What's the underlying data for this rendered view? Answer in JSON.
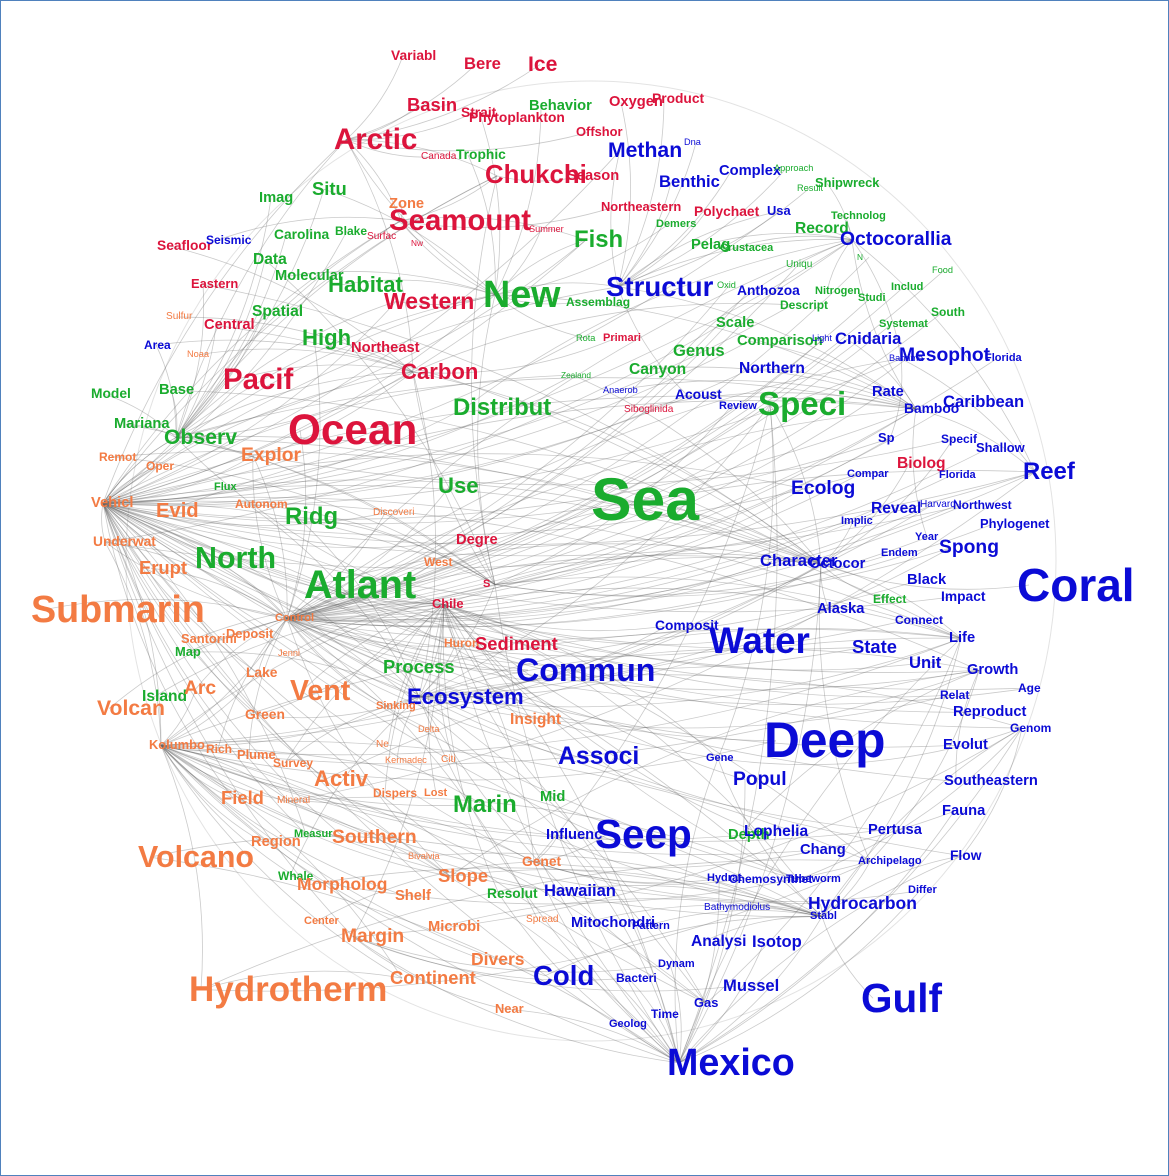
{
  "colors": {
    "red": "#dc143c",
    "green": "#1aac2e",
    "blue": "#0b0bd6",
    "orange": "#f37b43",
    "edge": "#666666"
  },
  "words": [
    {
      "text": "Variabl",
      "cluster": "red",
      "w": 1.5
    },
    {
      "text": "Bere",
      "cluster": "red",
      "w": 1.8
    },
    {
      "text": "Ice",
      "cluster": "red",
      "w": 2.3
    },
    {
      "text": "Basin",
      "cluster": "red",
      "w": 2.0
    },
    {
      "text": "Strait",
      "cluster": "red",
      "w": 1.5
    },
    {
      "text": "Phytoplankton",
      "cluster": "red",
      "w": 1.5
    },
    {
      "text": "Behavior",
      "cluster": "green",
      "w": 1.6
    },
    {
      "text": "Oxygen",
      "cluster": "red",
      "w": 1.6
    },
    {
      "text": "Product",
      "cluster": "red",
      "w": 1.5
    },
    {
      "text": "Offshor",
      "cluster": "red",
      "w": 1.4
    },
    {
      "text": "Arctic",
      "cluster": "red",
      "w": 3.2
    },
    {
      "text": "Canada",
      "cluster": "red",
      "w": 1.1
    },
    {
      "text": "Trophic",
      "cluster": "green",
      "w": 1.5
    },
    {
      "text": "Methan",
      "cluster": "blue",
      "w": 2.3
    },
    {
      "text": "Dna",
      "cluster": "blue",
      "w": 1.0
    },
    {
      "text": "Chukchi",
      "cluster": "red",
      "w": 2.8
    },
    {
      "text": "Season",
      "cluster": "red",
      "w": 1.6
    },
    {
      "text": "Benthic",
      "cluster": "blue",
      "w": 1.8
    },
    {
      "text": "Complex",
      "cluster": "blue",
      "w": 1.6
    },
    {
      "text": "Approach",
      "cluster": "green",
      "w": 1.0
    },
    {
      "text": "Result",
      "cluster": "green",
      "w": 1.0
    },
    {
      "text": "Shipwreck",
      "cluster": "green",
      "w": 1.4
    },
    {
      "text": "Situ",
      "cluster": "green",
      "w": 2.0
    },
    {
      "text": "Imag",
      "cluster": "green",
      "w": 1.6
    },
    {
      "text": "Zone",
      "cluster": "orange",
      "w": 1.6
    },
    {
      "text": "Seamount",
      "cluster": "red",
      "w": 3.2
    },
    {
      "text": "Northeastern",
      "cluster": "red",
      "w": 1.4
    },
    {
      "text": "Polychaet",
      "cluster": "red",
      "w": 1.5
    },
    {
      "text": "Usa",
      "cluster": "blue",
      "w": 1.4
    },
    {
      "text": "Technolog",
      "cluster": "green",
      "w": 1.2
    },
    {
      "text": "Seafloor",
      "cluster": "red",
      "w": 1.5
    },
    {
      "text": "Seismic",
      "cluster": "blue",
      "w": 1.3
    },
    {
      "text": "Carolina",
      "cluster": "green",
      "w": 1.5
    },
    {
      "text": "Blake",
      "cluster": "green",
      "w": 1.3
    },
    {
      "text": "Surfac",
      "cluster": "red",
      "w": 1.1
    },
    {
      "text": "Nw",
      "cluster": "red",
      "w": 0.9
    },
    {
      "text": "Summer",
      "cluster": "red",
      "w": 1.0
    },
    {
      "text": "Fish",
      "cluster": "green",
      "w": 2.6
    },
    {
      "text": "Demers",
      "cluster": "green",
      "w": 1.2
    },
    {
      "text": "Record",
      "cluster": "green",
      "w": 1.7
    },
    {
      "text": "Octocorallia",
      "cluster": "blue",
      "w": 2.1
    },
    {
      "text": "Pelag",
      "cluster": "green",
      "w": 1.6
    },
    {
      "text": "Crustacea",
      "cluster": "green",
      "w": 1.2
    },
    {
      "text": "Data",
      "cluster": "green",
      "w": 1.7
    },
    {
      "text": "Molecular",
      "cluster": "green",
      "w": 1.6
    },
    {
      "text": "Habitat",
      "cluster": "green",
      "w": 2.4
    },
    {
      "text": "New",
      "cluster": "green",
      "w": 4.1
    },
    {
      "text": "Uniqu",
      "cluster": "green",
      "w": 1.1
    },
    {
      "text": "N",
      "cluster": "green",
      "w": 0.9
    },
    {
      "text": "Food",
      "cluster": "green",
      "w": 1.0
    },
    {
      "text": "Eastern",
      "cluster": "red",
      "w": 1.4
    },
    {
      "text": "Western",
      "cluster": "red",
      "w": 2.5
    },
    {
      "text": "Assemblag",
      "cluster": "green",
      "w": 1.3
    },
    {
      "text": "Structur",
      "cluster": "blue",
      "w": 3.0
    },
    {
      "text": "Oxid",
      "cluster": "green",
      "w": 1.0
    },
    {
      "text": "Anthozoa",
      "cluster": "blue",
      "w": 1.5
    },
    {
      "text": "Nitrogen",
      "cluster": "green",
      "w": 1.2
    },
    {
      "text": "Includ",
      "cluster": "green",
      "w": 1.2
    },
    {
      "text": "Descript",
      "cluster": "green",
      "w": 1.3
    },
    {
      "text": "Studi",
      "cluster": "green",
      "w": 1.2
    },
    {
      "text": "South",
      "cluster": "green",
      "w": 1.3
    },
    {
      "text": "Sulfur",
      "cluster": "orange",
      "w": 1.1
    },
    {
      "text": "Central",
      "cluster": "red",
      "w": 1.6
    },
    {
      "text": "Spatial",
      "cluster": "green",
      "w": 1.7
    },
    {
      "text": "Scale",
      "cluster": "green",
      "w": 1.6
    },
    {
      "text": "Systemat",
      "cluster": "green",
      "w": 1.2
    },
    {
      "text": "Rota",
      "cluster": "green",
      "w": 1.0
    },
    {
      "text": "Primari",
      "cluster": "red",
      "w": 1.2
    },
    {
      "text": "Comparison",
      "cluster": "green",
      "w": 1.6
    },
    {
      "text": "Light",
      "cluster": "blue",
      "w": 1.0
    },
    {
      "text": "Cnidaria",
      "cluster": "blue",
      "w": 1.8
    },
    {
      "text": "Area",
      "cluster": "blue",
      "w": 1.3
    },
    {
      "text": "High",
      "cluster": "green",
      "w": 2.4
    },
    {
      "text": "Northeast",
      "cluster": "red",
      "w": 1.6
    },
    {
      "text": "Noaa",
      "cluster": "orange",
      "w": 1.0
    },
    {
      "text": "Genus",
      "cluster": "green",
      "w": 1.8
    },
    {
      "text": "Mesophot",
      "cluster": "blue",
      "w": 2.1
    },
    {
      "text": "Bahama",
      "cluster": "blue",
      "w": 1.0
    },
    {
      "text": "Florida",
      "cluster": "blue",
      "w": 1.2
    },
    {
      "text": "Pacif",
      "cluster": "red",
      "w": 3.2
    },
    {
      "text": "Carbon",
      "cluster": "red",
      "w": 2.4
    },
    {
      "text": "Zealand",
      "cluster": "green",
      "w": 0.9
    },
    {
      "text": "Canyon",
      "cluster": "green",
      "w": 1.7
    },
    {
      "text": "Northern",
      "cluster": "blue",
      "w": 1.7
    },
    {
      "text": "Model",
      "cluster": "green",
      "w": 1.5
    },
    {
      "text": "Base",
      "cluster": "green",
      "w": 1.6
    },
    {
      "text": "Anaerob",
      "cluster": "blue",
      "w": 1.0
    },
    {
      "text": "Acoust",
      "cluster": "blue",
      "w": 1.5
    },
    {
      "text": "Rate",
      "cluster": "blue",
      "w": 1.6
    },
    {
      "text": "Caribbean",
      "cluster": "blue",
      "w": 1.8
    },
    {
      "text": "Distribut",
      "cluster": "green",
      "w": 2.6
    },
    {
      "text": "Review",
      "cluster": "blue",
      "w": 1.2
    },
    {
      "text": "Speci",
      "cluster": "green",
      "w": 3.6
    },
    {
      "text": "Bamboo",
      "cluster": "blue",
      "w": 1.5
    },
    {
      "text": "Mariana",
      "cluster": "green",
      "w": 1.6
    },
    {
      "text": "Ocean",
      "cluster": "red",
      "w": 4.6
    },
    {
      "text": "Siboglinida",
      "cluster": "red",
      "w": 1.1
    },
    {
      "text": "Observ",
      "cluster": "green",
      "w": 2.3
    },
    {
      "text": "Sp",
      "cluster": "blue",
      "w": 1.4
    },
    {
      "text": "Specif",
      "cluster": "blue",
      "w": 1.3
    },
    {
      "text": "Shallow",
      "cluster": "blue",
      "w": 1.4
    },
    {
      "text": "Remot",
      "cluster": "orange",
      "w": 1.3
    },
    {
      "text": "Oper",
      "cluster": "orange",
      "w": 1.3
    },
    {
      "text": "Explor",
      "cluster": "orange",
      "w": 2.1
    },
    {
      "text": "Biolog",
      "cluster": "red",
      "w": 1.7
    },
    {
      "text": "Reef",
      "cluster": "blue",
      "w": 2.6
    },
    {
      "text": "Compar",
      "cluster": "blue",
      "w": 1.2
    },
    {
      "text": "Florida",
      "cluster": "blue",
      "w": 1.2
    },
    {
      "text": "Flux",
      "cluster": "green",
      "w": 1.2
    },
    {
      "text": "Use",
      "cluster": "green",
      "w": 2.4
    },
    {
      "text": "Sea",
      "cluster": "green",
      "w": 6.6
    },
    {
      "text": "Ecolog",
      "cluster": "blue",
      "w": 2.1
    },
    {
      "text": "Vehicl",
      "cluster": "orange",
      "w": 1.6
    },
    {
      "text": "Evid",
      "cluster": "orange",
      "w": 2.2
    },
    {
      "text": "Autonom",
      "cluster": "orange",
      "w": 1.3
    },
    {
      "text": "Ridg",
      "cluster": "green",
      "w": 2.6
    },
    {
      "text": "Discoveri",
      "cluster": "orange",
      "w": 1.1
    },
    {
      "text": "Reveal",
      "cluster": "blue",
      "w": 1.7
    },
    {
      "text": "Harvard",
      "cluster": "blue",
      "w": 1.1
    },
    {
      "text": "Northwest",
      "cluster": "blue",
      "w": 1.3
    },
    {
      "text": "Implic",
      "cluster": "blue",
      "w": 1.2
    },
    {
      "text": "Phylogenet",
      "cluster": "blue",
      "w": 1.4
    },
    {
      "text": "Underwat",
      "cluster": "orange",
      "w": 1.5
    },
    {
      "text": "Degre",
      "cluster": "red",
      "w": 1.6
    },
    {
      "text": "Year",
      "cluster": "blue",
      "w": 1.2
    },
    {
      "text": "Endem",
      "cluster": "blue",
      "w": 1.2
    },
    {
      "text": "Spong",
      "cluster": "blue",
      "w": 2.1
    },
    {
      "text": "Erupt",
      "cluster": "orange",
      "w": 2.0
    },
    {
      "text": "North",
      "cluster": "green",
      "w": 3.3
    },
    {
      "text": "West",
      "cluster": "orange",
      "w": 1.3
    },
    {
      "text": "Character",
      "cluster": "blue",
      "w": 1.8
    },
    {
      "text": "Octocor",
      "cluster": "blue",
      "w": 1.6
    },
    {
      "text": "Black",
      "cluster": "blue",
      "w": 1.6
    },
    {
      "text": "Coral",
      "cluster": "blue",
      "w": 5.0
    },
    {
      "text": "Atlant",
      "cluster": "green",
      "w": 4.3
    },
    {
      "text": "S",
      "cluster": "red",
      "w": 1.2
    },
    {
      "text": "Submarin",
      "cluster": "orange",
      "w": 4.1
    },
    {
      "text": "Chile",
      "cluster": "red",
      "w": 1.4
    },
    {
      "text": "Alaska",
      "cluster": "blue",
      "w": 1.6
    },
    {
      "text": "Effect",
      "cluster": "green",
      "w": 1.3
    },
    {
      "text": "Impact",
      "cluster": "blue",
      "w": 1.5
    },
    {
      "text": "Control",
      "cluster": "orange",
      "w": 1.2
    },
    {
      "text": "Connect",
      "cluster": "blue",
      "w": 1.3
    },
    {
      "text": "Deposit",
      "cluster": "orange",
      "w": 1.4
    },
    {
      "text": "Santorini",
      "cluster": "orange",
      "w": 1.4
    },
    {
      "text": "Composit",
      "cluster": "blue",
      "w": 1.5
    },
    {
      "text": "Water",
      "cluster": "blue",
      "w": 4.0
    },
    {
      "text": "Life",
      "cluster": "blue",
      "w": 1.6
    },
    {
      "text": "Map",
      "cluster": "green",
      "w": 1.4
    },
    {
      "text": "Jenni",
      "cluster": "orange",
      "w": 1.0
    },
    {
      "text": "Huron",
      "cluster": "orange",
      "w": 1.3
    },
    {
      "text": "Sediment",
      "cluster": "red",
      "w": 2.0
    },
    {
      "text": "State",
      "cluster": "blue",
      "w": 2.0
    },
    {
      "text": "Commun",
      "cluster": "blue",
      "w": 3.5
    },
    {
      "text": "Unit",
      "cluster": "blue",
      "w": 1.8
    },
    {
      "text": "Growth",
      "cluster": "blue",
      "w": 1.6
    },
    {
      "text": "Process",
      "cluster": "green",
      "w": 2.0
    },
    {
      "text": "Lake",
      "cluster": "orange",
      "w": 1.5
    },
    {
      "text": "Age",
      "cluster": "blue",
      "w": 1.3
    },
    {
      "text": "Island",
      "cluster": "green",
      "w": 1.7
    },
    {
      "text": "Arc",
      "cluster": "orange",
      "w": 2.1
    },
    {
      "text": "Vent",
      "cluster": "orange",
      "w": 3.1
    },
    {
      "text": "Relat",
      "cluster": "blue",
      "w": 1.3
    },
    {
      "text": "Ecosystem",
      "cluster": "blue",
      "w": 2.4
    },
    {
      "text": "Sinking",
      "cluster": "orange",
      "w": 1.2
    },
    {
      "text": "Reproduct",
      "cluster": "blue",
      "w": 1.6
    },
    {
      "text": "Genom",
      "cluster": "blue",
      "w": 1.3
    },
    {
      "text": "Volcan",
      "cluster": "orange",
      "w": 2.3
    },
    {
      "text": "Green",
      "cluster": "orange",
      "w": 1.5
    },
    {
      "text": "Insight",
      "cluster": "orange",
      "w": 1.7
    },
    {
      "text": "Deep",
      "cluster": "blue",
      "w": 5.4
    },
    {
      "text": "Delta",
      "cluster": "orange",
      "w": 1.0
    },
    {
      "text": "Evolut",
      "cluster": "blue",
      "w": 1.6
    },
    {
      "text": "Kolumbo",
      "cluster": "orange",
      "w": 1.4
    },
    {
      "text": "Rich",
      "cluster": "orange",
      "w": 1.3
    },
    {
      "text": "Plume",
      "cluster": "orange",
      "w": 1.4
    },
    {
      "text": "Ne",
      "cluster": "orange",
      "w": 1.1
    },
    {
      "text": "Associ",
      "cluster": "blue",
      "w": 2.7
    },
    {
      "text": "Gene",
      "cluster": "blue",
      "w": 1.2
    },
    {
      "text": "Survey",
      "cluster": "orange",
      "w": 1.3
    },
    {
      "text": "Kermadec",
      "cluster": "orange",
      "w": 1.0
    },
    {
      "text": "Citi",
      "cluster": "orange",
      "w": 1.1
    },
    {
      "text": "Popul",
      "cluster": "blue",
      "w": 2.1
    },
    {
      "text": "Southeastern",
      "cluster": "blue",
      "w": 1.6
    },
    {
      "text": "Activ",
      "cluster": "orange",
      "w": 2.4
    },
    {
      "text": "Field",
      "cluster": "orange",
      "w": 2.0
    },
    {
      "text": "Mineral",
      "cluster": "orange",
      "w": 1.1
    },
    {
      "text": "Dispers",
      "cluster": "orange",
      "w": 1.3
    },
    {
      "text": "Lost",
      "cluster": "orange",
      "w": 1.2
    },
    {
      "text": "Marin",
      "cluster": "green",
      "w": 2.6
    },
    {
      "text": "Mid",
      "cluster": "green",
      "w": 1.6
    },
    {
      "text": "Fauna",
      "cluster": "blue",
      "w": 1.6
    },
    {
      "text": "Measur",
      "cluster": "green",
      "w": 1.2
    },
    {
      "text": "Region",
      "cluster": "orange",
      "w": 1.6
    },
    {
      "text": "Southern",
      "cluster": "orange",
      "w": 2.1
    },
    {
      "text": "Influenc",
      "cluster": "blue",
      "w": 1.6
    },
    {
      "text": "Seep",
      "cluster": "blue",
      "w": 4.4
    },
    {
      "text": "Depth",
      "cluster": "green",
      "w": 1.6
    },
    {
      "text": "Lophelia",
      "cluster": "blue",
      "w": 1.7
    },
    {
      "text": "Pertusa",
      "cluster": "blue",
      "w": 1.6
    },
    {
      "text": "Volcano",
      "cluster": "orange",
      "w": 3.3
    },
    {
      "text": "Bivalvia",
      "cluster": "orange",
      "w": 1.0
    },
    {
      "text": "Chang",
      "cluster": "blue",
      "w": 1.6
    },
    {
      "text": "Archipelago",
      "cluster": "blue",
      "w": 1.2
    },
    {
      "text": "Flow",
      "cluster": "blue",
      "w": 1.5
    },
    {
      "text": "Genet",
      "cluster": "orange",
      "w": 1.5
    },
    {
      "text": "Whale",
      "cluster": "green",
      "w": 1.3
    },
    {
      "text": "Morpholog",
      "cluster": "orange",
      "w": 1.9
    },
    {
      "text": "Slope",
      "cluster": "orange",
      "w": 2.0
    },
    {
      "text": "Hydrat",
      "cluster": "blue",
      "w": 1.2
    },
    {
      "text": "Chemosynthet",
      "cluster": "blue",
      "w": 1.3
    },
    {
      "text": "Tubeworm",
      "cluster": "blue",
      "w": 1.2
    },
    {
      "text": "Shelf",
      "cluster": "orange",
      "w": 1.6
    },
    {
      "text": "Resolut",
      "cluster": "green",
      "w": 1.5
    },
    {
      "text": "Hawaiian",
      "cluster": "blue",
      "w": 1.8
    },
    {
      "text": "Differ",
      "cluster": "blue",
      "w": 1.2
    },
    {
      "text": "Bathymodiolus",
      "cluster": "blue",
      "w": 1.1
    },
    {
      "text": "Hydrocarbon",
      "cluster": "blue",
      "w": 1.9
    },
    {
      "text": "Stabl",
      "cluster": "blue",
      "w": 1.2
    },
    {
      "text": "Center",
      "cluster": "orange",
      "w": 1.2
    },
    {
      "text": "Spread",
      "cluster": "orange",
      "w": 1.1
    },
    {
      "text": "Mitochondri",
      "cluster": "blue",
      "w": 1.6
    },
    {
      "text": "Pattern",
      "cluster": "blue",
      "w": 1.2
    },
    {
      "text": "Margin",
      "cluster": "orange",
      "w": 2.1
    },
    {
      "text": "Microbi",
      "cluster": "orange",
      "w": 1.6
    },
    {
      "text": "Analysi",
      "cluster": "blue",
      "w": 1.7
    },
    {
      "text": "Isotop",
      "cluster": "blue",
      "w": 1.8
    },
    {
      "text": "Divers",
      "cluster": "orange",
      "w": 1.9
    },
    {
      "text": "Dynam",
      "cluster": "blue",
      "w": 1.2
    },
    {
      "text": "Continent",
      "cluster": "orange",
      "w": 2.0
    },
    {
      "text": "Cold",
      "cluster": "blue",
      "w": 3.0
    },
    {
      "text": "Bacteri",
      "cluster": "blue",
      "w": 1.3
    },
    {
      "text": "Hydrotherm",
      "cluster": "orange",
      "w": 3.8
    },
    {
      "text": "Mussel",
      "cluster": "blue",
      "w": 1.8
    },
    {
      "text": "Gulf",
      "cluster": "blue",
      "w": 4.4
    },
    {
      "text": "Gas",
      "cluster": "blue",
      "w": 1.4
    },
    {
      "text": "Near",
      "cluster": "orange",
      "w": 1.4
    },
    {
      "text": "Time",
      "cluster": "blue",
      "w": 1.3
    },
    {
      "text": "Geolog",
      "cluster": "blue",
      "w": 1.2
    },
    {
      "text": "Mexico",
      "cluster": "blue",
      "w": 4.1
    }
  ]
}
